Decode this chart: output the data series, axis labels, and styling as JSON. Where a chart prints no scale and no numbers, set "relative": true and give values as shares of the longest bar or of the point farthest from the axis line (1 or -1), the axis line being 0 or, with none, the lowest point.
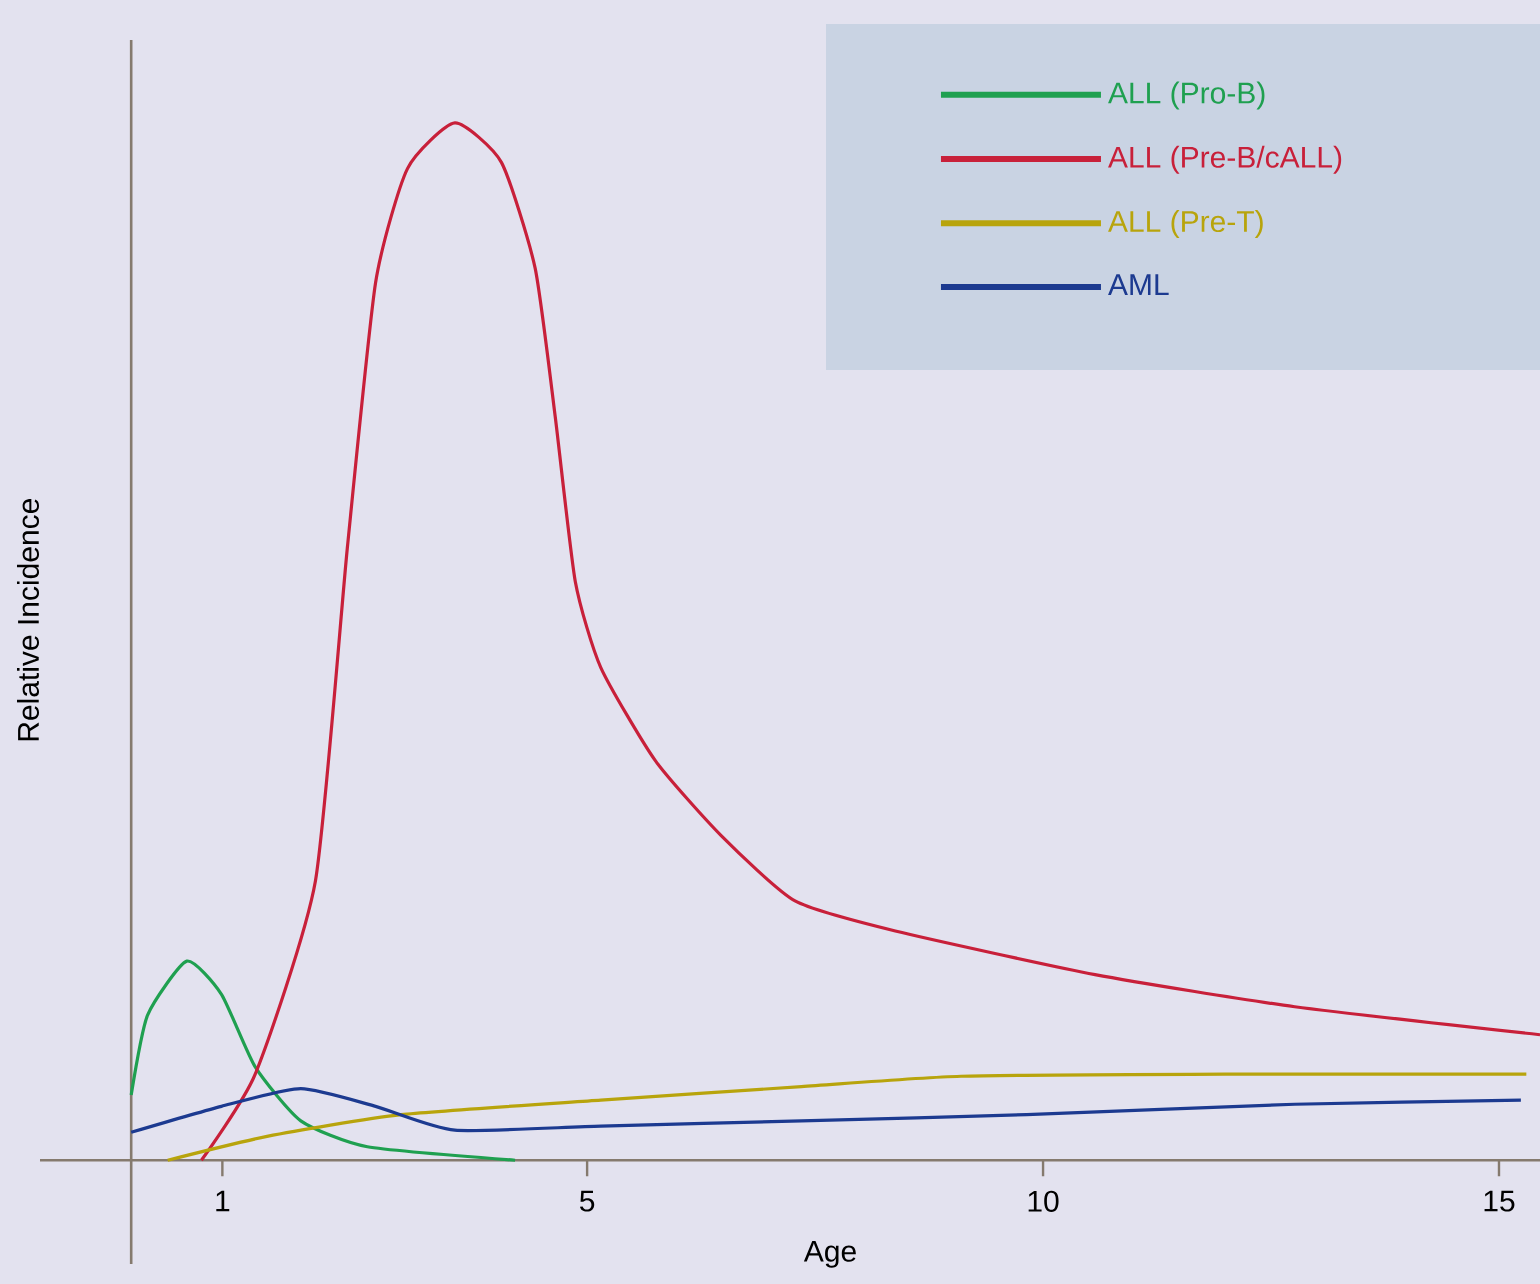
{
  "chart_data": {
    "type": "line",
    "relative": true,
    "xlabel": "Age",
    "ylabel": "Relative Incidence",
    "xlim": [
      -1,
      15.45
    ],
    "xticks": [
      1,
      5,
      10,
      15
    ],
    "legend": "top right",
    "marker": "none",
    "line_style": "solid",
    "series": [
      {
        "name": "ALL (Pro-B)",
        "color": "#1fa050",
        "x": [
          0,
          0.18,
          0.61,
          0.99,
          1.36,
          1.86,
          2.59,
          4.21
        ],
        "values": [
          0.063,
          0.14,
          0.192,
          0.16,
          0.09,
          0.038,
          0.013,
          0
        ]
      },
      {
        "name": "ALL (Pre-B/cALL)",
        "color": "#c8203a",
        "x": [
          0.77,
          1.36,
          2.02,
          2.37,
          2.68,
          3.03,
          3.55,
          4.06,
          4.43,
          4.65,
          4.87,
          5.15,
          5.75,
          6.47,
          7.28,
          8.38,
          10.57,
          12.76,
          15.45
        ],
        "values": [
          0,
          0.083,
          0.269,
          0.59,
          0.846,
          0.956,
          1,
          0.962,
          0.86,
          0.717,
          0.558,
          0.475,
          0.385,
          0.313,
          0.25,
          0.221,
          0.179,
          0.148,
          0.121
        ]
      },
      {
        "name": "ALL (Pre-T)",
        "color": "#b8a40c",
        "x": [
          0.4,
          1.49,
          2.96,
          5.15,
          7.35,
          9.1,
          12.0,
          15.3
        ],
        "values": [
          0,
          0.023,
          0.044,
          0.058,
          0.071,
          0.081,
          0.083,
          0.083
        ]
      },
      {
        "name": "AML",
        "color": "#1c3a90",
        "x": [
          0,
          0.99,
          1.86,
          2.68,
          3.55,
          5.15,
          7.35,
          9.82,
          12.76,
          15.24
        ],
        "values": [
          0.027,
          0.052,
          0.069,
          0.052,
          0.029,
          0.033,
          0.038,
          0.044,
          0.054,
          0.058
        ]
      }
    ]
  }
}
